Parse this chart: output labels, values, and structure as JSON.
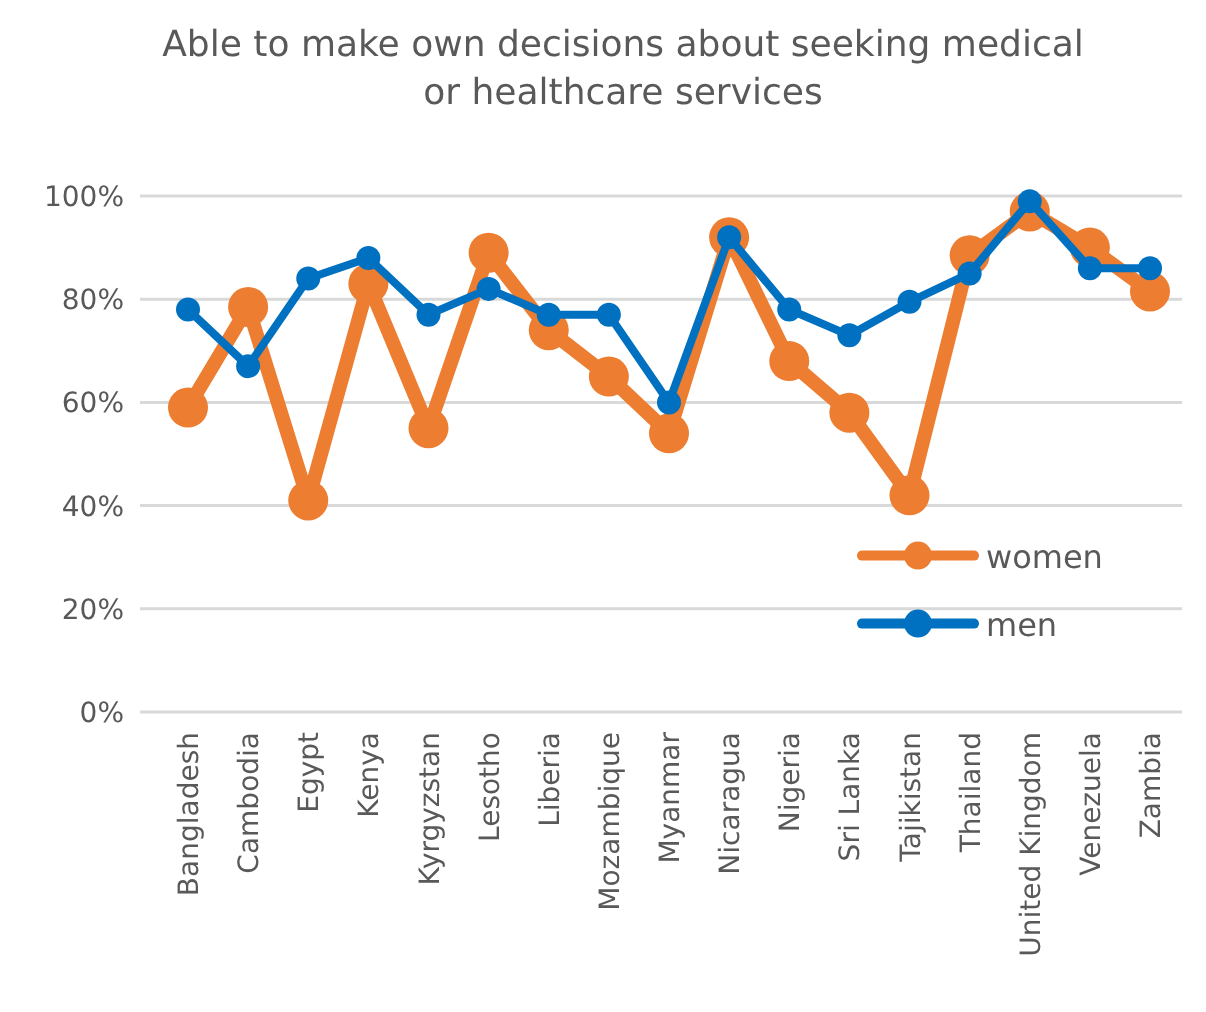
{
  "chart_data": {
    "type": "line",
    "title": "Able to make own decisions about seeking medical or healthcare services",
    "categories": [
      "Bangladesh",
      "Cambodia",
      "Egypt",
      "Kenya",
      "Kyrgyzstan",
      "Lesotho",
      "Liberia",
      "Mozambique",
      "Myanmar",
      "Nicaragua",
      "Nigeria",
      "Sri Lanka",
      "Tajikistan",
      "Thailand",
      "United Kingdom",
      "Venezuela",
      "Zambia"
    ],
    "series": [
      {
        "name": "women",
        "color": "#ed7d31",
        "values": [
          59,
          78.5,
          41,
          83,
          55,
          89,
          74,
          65,
          54,
          92,
          68,
          58,
          42,
          88.5,
          97,
          90,
          81.5
        ]
      },
      {
        "name": "men",
        "color": "#0070c0",
        "values": [
          78,
          67,
          84,
          88,
          77,
          82,
          77,
          77,
          60,
          92,
          78,
          73,
          79.5,
          85,
          99,
          86,
          86
        ]
      }
    ],
    "ylim": [
      0,
      100
    ],
    "yticks": [
      {
        "value": 0,
        "label": "0%"
      },
      {
        "value": 20,
        "label": "20%"
      },
      {
        "value": 40,
        "label": "40%"
      },
      {
        "value": 60,
        "label": "60%"
      },
      {
        "value": 80,
        "label": "80%"
      },
      {
        "value": 100,
        "label": "100%"
      }
    ],
    "grid": true,
    "legend": "bottom right",
    "marker": "circle",
    "line_style": "solid"
  }
}
